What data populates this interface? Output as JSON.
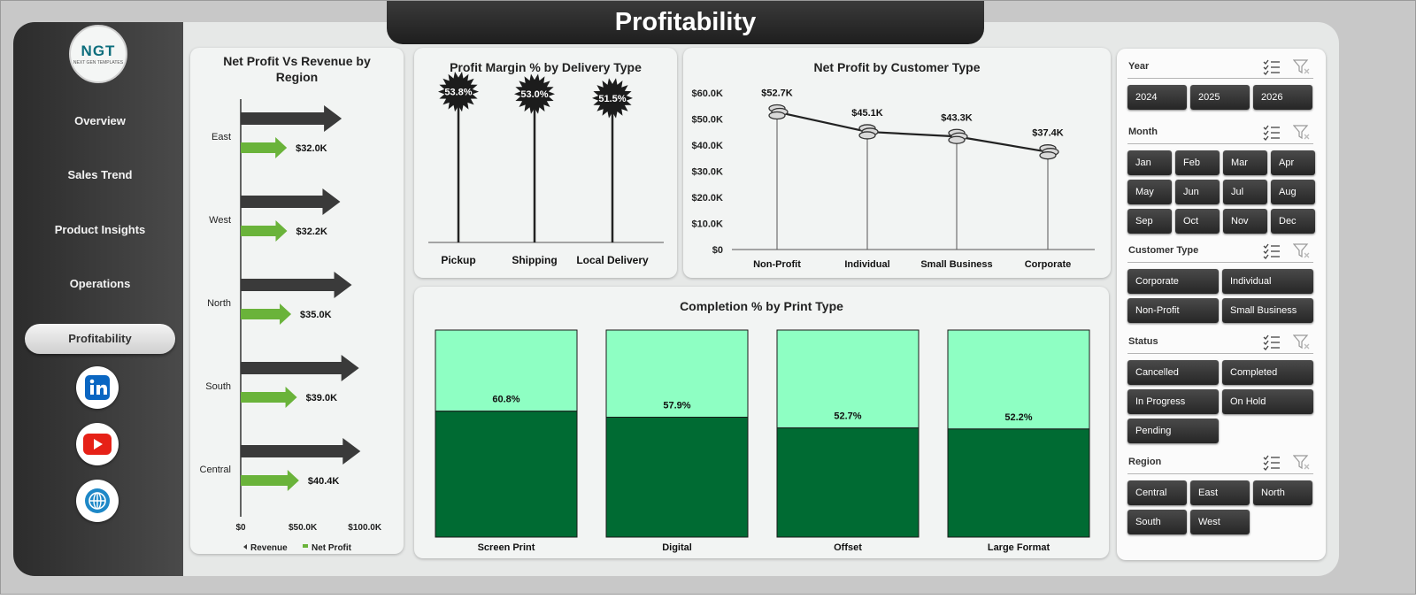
{
  "logo": {
    "text": "NGT",
    "subtext": "NEXT GEN TEMPLATES"
  },
  "title": "Profitability",
  "nav": [
    {
      "label": "Overview",
      "active": false
    },
    {
      "label": "Sales Trend",
      "active": false
    },
    {
      "label": "Product Insights",
      "active": false
    },
    {
      "label": "Operations",
      "active": false
    },
    {
      "label": "Profitability",
      "active": true
    }
  ],
  "social": [
    "linkedin-icon",
    "youtube-icon",
    "globe-icon"
  ],
  "colors": {
    "revenue": "#3a3a3a",
    "profit": "#6ab33a",
    "completed": "#006b33",
    "remaining": "#8effc3"
  },
  "charts": {
    "region": {
      "chart_data": {
        "type": "bar",
        "title": "Net Profit Vs Revenue  by Region",
        "categories": [
          "East",
          "West",
          "North",
          "South",
          "Central"
        ],
        "series": [
          {
            "name": "Revenue",
            "values": [
              70.0,
              69.0,
              77.0,
              82.0,
              83.0
            ]
          },
          {
            "name": "Net Profit",
            "values": [
              32.0,
              32.2,
              35.0,
              39.0,
              40.4
            ]
          }
        ],
        "value_labels": [
          "$32.0K",
          "$32.2K",
          "$35.0K",
          "$39.0K",
          "$40.4K"
        ],
        "ticks": [
          "$0",
          "$50.0K",
          "$100.0K"
        ],
        "xlim": [
          0,
          100
        ],
        "legend": "bottom"
      }
    },
    "margin": {
      "chart_data": {
        "type": "bar",
        "title": "Profit Margin % by Delivery Type",
        "categories": [
          "Pickup",
          "Shipping",
          "Local Delivery"
        ],
        "values": [
          53.8,
          53.0,
          51.5
        ],
        "value_labels": [
          "53.8%",
          "53.0%",
          "51.5%"
        ]
      }
    },
    "customer": {
      "chart_data": {
        "type": "line",
        "title": "Net Profit by Customer Type",
        "categories": [
          "Non-Profit",
          "Individual",
          "Small Business",
          "Corporate"
        ],
        "values": [
          52.7,
          45.1,
          43.3,
          37.4
        ],
        "value_labels": [
          "$52.7K",
          "$45.1K",
          "$43.3K",
          "$37.4K"
        ],
        "yticks": [
          "$0",
          "$10.0K",
          "$20.0K",
          "$30.0K",
          "$40.0K",
          "$50.0K",
          "$60.0K"
        ],
        "ylim": [
          0,
          60
        ]
      }
    },
    "completion": {
      "chart_data": {
        "type": "bar",
        "title": "Completion % by Print Type",
        "categories": [
          "Screen Print",
          "Digital",
          "Offset",
          "Large Format"
        ],
        "values": [
          60.8,
          57.9,
          52.7,
          52.2
        ],
        "value_labels": [
          "60.8%",
          "57.9%",
          "52.7%",
          "52.2%"
        ],
        "ylim": [
          0,
          100
        ]
      }
    }
  },
  "slicers": [
    {
      "title": "Year",
      "items": [
        "2024",
        "2025",
        "2026"
      ],
      "cols": 3
    },
    {
      "title": "Month",
      "items": [
        "Jan",
        "Feb",
        "Mar",
        "Apr",
        "May",
        "Jun",
        "Jul",
        "Aug",
        "Sep",
        "Oct",
        "Nov",
        "Dec"
      ],
      "cols": 4
    },
    {
      "title": "Customer Type",
      "items": [
        "Corporate",
        "Individual",
        "Non-Profit",
        "Small Business"
      ],
      "cols": 2
    },
    {
      "title": "Status",
      "items": [
        "Cancelled",
        "Completed",
        "In Progress",
        "On Hold",
        "Pending"
      ],
      "cols": 2
    },
    {
      "title": "Region",
      "items": [
        "Central",
        "East",
        "North",
        "South",
        "West"
      ],
      "cols": 3
    }
  ]
}
